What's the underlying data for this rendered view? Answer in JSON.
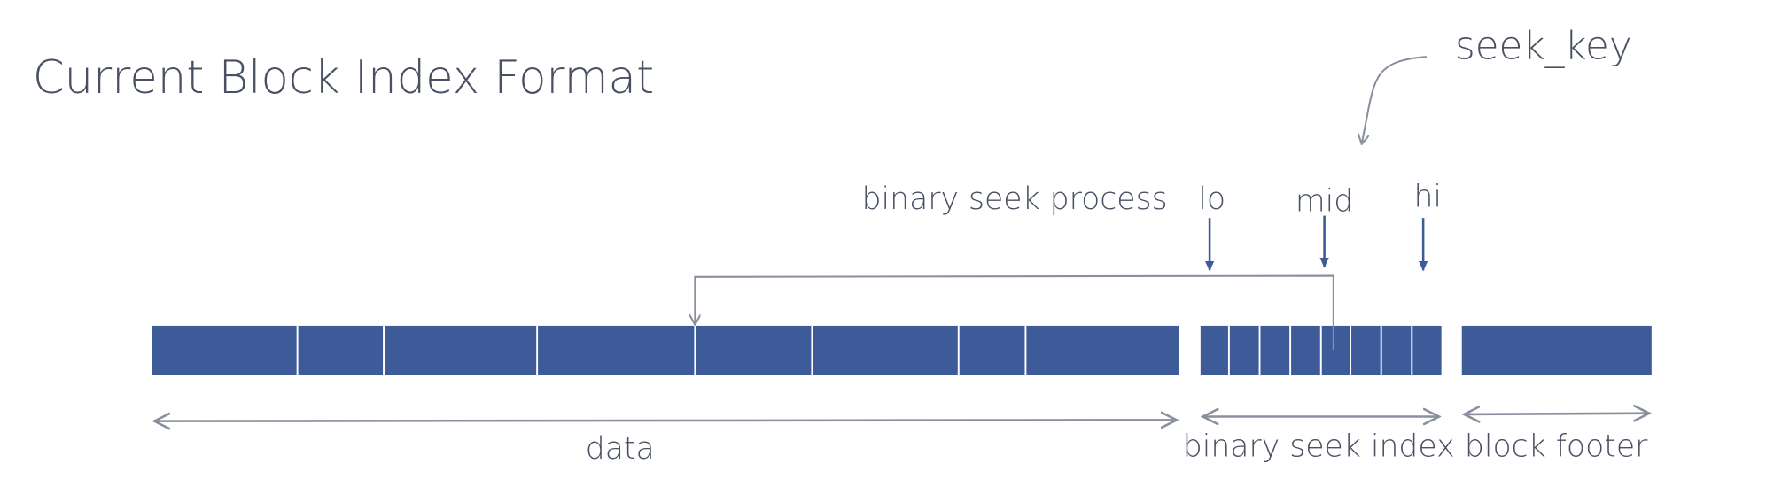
{
  "title": "Current Block Index Format",
  "seek_key_label": "seek_key",
  "process_label": "binary seek process",
  "pointers": {
    "lo": "lo",
    "mid": "mid",
    "hi": "hi"
  },
  "sections": {
    "data": "data",
    "index": "binary seek index",
    "footer": "block footer"
  },
  "colors": {
    "block": "#3d5a99",
    "text": "#4a5063",
    "line": "#8a8f9e",
    "pointer": "#3d5a99"
  }
}
